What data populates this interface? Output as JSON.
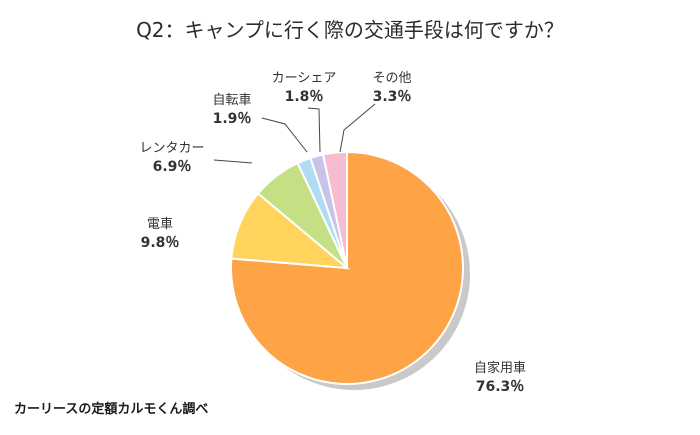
{
  "chart_data": {
    "type": "pie",
    "title": "Q2：キャンプに行く際の交通手段は何ですか？",
    "categories": [
      "自家用車",
      "電車",
      "レンタカー",
      "自転車",
      "カーシェア",
      "その他"
    ],
    "values": [
      76.3,
      9.8,
      6.9,
      1.9,
      1.8,
      3.3
    ],
    "value_labels": [
      "76.3％",
      "9.8％",
      "6.9％",
      "1.9％",
      "1.8％",
      "3.3％"
    ],
    "colors": [
      "#ffa347",
      "#ffd35c",
      "#c5df84",
      "#aedcf2",
      "#c9c3e9",
      "#f8bcd0"
    ],
    "start": "12 o'clock, clockwise"
  },
  "source": "カーリースの定額カルモくん調べ"
}
